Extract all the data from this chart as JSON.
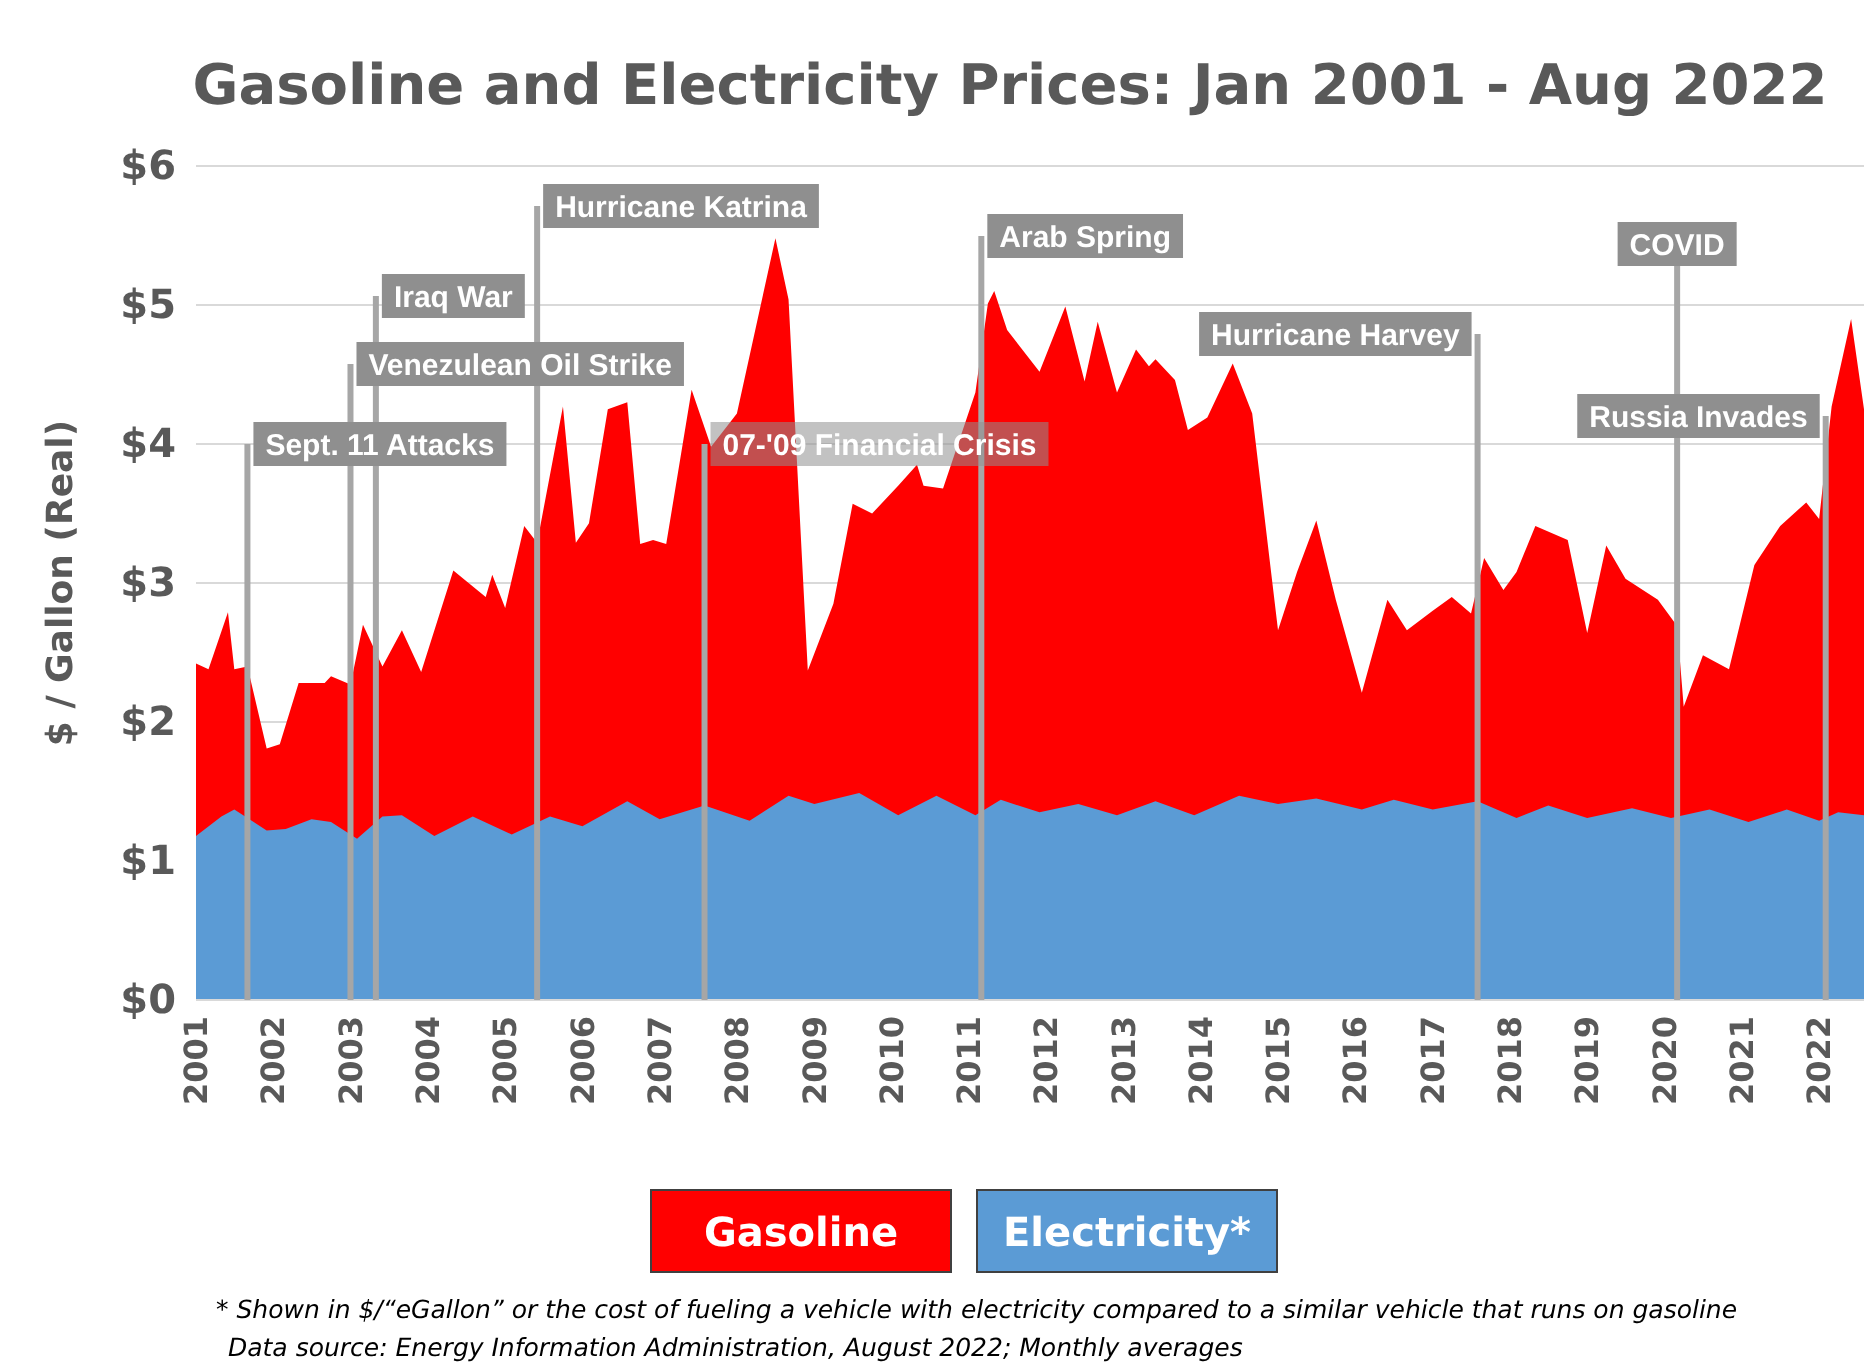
{
  "chart_data": {
    "type": "area",
    "title": "Gasoline and Electricity Prices: Jan 2001 - Aug 2022",
    "ylabel": "$ / Gallon (Real)",
    "xlim": [
      "2001-01",
      "2022-08"
    ],
    "xticks": [
      {
        "value": "2001-01",
        "label": "2001"
      },
      {
        "value": "2002-01",
        "label": "2002"
      },
      {
        "value": "2003-01",
        "label": "2003"
      },
      {
        "value": "2004-01",
        "label": "2004"
      },
      {
        "value": "2005-01",
        "label": "2005"
      },
      {
        "value": "2006-01",
        "label": "2006"
      },
      {
        "value": "2007-01",
        "label": "2007"
      },
      {
        "value": "2008-01",
        "label": "2008"
      },
      {
        "value": "2009-01",
        "label": "2009"
      },
      {
        "value": "2010-01",
        "label": "2010"
      },
      {
        "value": "2011-01",
        "label": "2011"
      },
      {
        "value": "2012-01",
        "label": "2012"
      },
      {
        "value": "2013-01",
        "label": "2013"
      },
      {
        "value": "2014-01",
        "label": "2014"
      },
      {
        "value": "2015-01",
        "label": "2015"
      },
      {
        "value": "2016-01",
        "label": "2016"
      },
      {
        "value": "2017-01",
        "label": "2017"
      },
      {
        "value": "2018-01",
        "label": "2018"
      },
      {
        "value": "2019-01",
        "label": "2019"
      },
      {
        "value": "2020-01",
        "label": "2020"
      },
      {
        "value": "2021-01",
        "label": "2021"
      },
      {
        "value": "2022-01",
        "label": "2022"
      }
    ],
    "ylim": [
      0,
      6
    ],
    "yticks": [
      {
        "value": 0,
        "label": "$0"
      },
      {
        "value": 1,
        "label": "$1"
      },
      {
        "value": 2,
        "label": "$2"
      },
      {
        "value": 3,
        "label": "$3"
      },
      {
        "value": 4,
        "label": "$4"
      },
      {
        "value": 5,
        "label": "$5"
      },
      {
        "value": 6,
        "label": "$6"
      }
    ],
    "grid": "y",
    "legend": "bottom",
    "series": [
      {
        "name": "Gasoline",
        "color": "#ff0000",
        "x": [
          "2001-01",
          "2001-02",
          "2001-03",
          "2001-06",
          "2001-07",
          "2001-09",
          "2001-12",
          "2002-02",
          "2002-05",
          "2002-09",
          "2002-10",
          "2003-01",
          "2003-03",
          "2003-06",
          "2003-09",
          "2003-12",
          "2004-05",
          "2004-10",
          "2004-11",
          "2005-01",
          "2005-04",
          "2005-06",
          "2005-10",
          "2005-12",
          "2006-02",
          "2006-05",
          "2006-08",
          "2006-10",
          "2006-12",
          "2007-02",
          "2007-06",
          "2007-09",
          "2008-01",
          "2008-07",
          "2008-09",
          "2008-12",
          "2009-04",
          "2009-07",
          "2009-10",
          "2010-02",
          "2010-05",
          "2010-06",
          "2010-09",
          "2011-02",
          "2011-04",
          "2011-05",
          "2011-07",
          "2011-12",
          "2012-04",
          "2012-07",
          "2012-09",
          "2012-12",
          "2013-03",
          "2013-05",
          "2013-06",
          "2013-09",
          "2013-11",
          "2014-02",
          "2014-06",
          "2014-09",
          "2015-01",
          "2015-04",
          "2015-07",
          "2015-10",
          "2016-02",
          "2016-06",
          "2016-09",
          "2016-11",
          "2017-01",
          "2017-04",
          "2017-07",
          "2017-09",
          "2017-12",
          "2018-02",
          "2018-05",
          "2018-10",
          "2019-01",
          "2019-04",
          "2019-07",
          "2019-12",
          "2020-03",
          "2020-04",
          "2020-07",
          "2020-11",
          "2021-03",
          "2021-07",
          "2021-11",
          "2022-01",
          "2022-03",
          "2022-06",
          "2022-08"
        ],
        "values": [
          2.42,
          2.4,
          2.38,
          2.79,
          2.38,
          2.4,
          1.81,
          1.84,
          2.28,
          2.28,
          2.33,
          2.27,
          2.7,
          2.4,
          2.66,
          2.36,
          3.09,
          2.9,
          3.06,
          2.82,
          3.41,
          3.29,
          4.27,
          3.29,
          3.43,
          4.25,
          4.3,
          3.28,
          3.31,
          3.28,
          4.39,
          3.98,
          4.22,
          5.48,
          5.04,
          2.37,
          2.85,
          3.57,
          3.5,
          3.7,
          3.85,
          3.7,
          3.68,
          4.37,
          5.01,
          5.1,
          4.82,
          4.52,
          4.99,
          4.45,
          4.88,
          4.37,
          4.68,
          4.56,
          4.61,
          4.46,
          4.1,
          4.19,
          4.58,
          4.22,
          2.66,
          3.08,
          3.45,
          2.88,
          2.21,
          2.88,
          2.66,
          2.73,
          2.8,
          2.9,
          2.78,
          3.18,
          2.95,
          3.08,
          3.41,
          3.31,
          2.64,
          3.27,
          3.03,
          2.88,
          2.69,
          2.11,
          2.48,
          2.38,
          3.13,
          3.41,
          3.58,
          3.46,
          4.27,
          4.9,
          4.25
        ]
      },
      {
        "name": "Electricity*",
        "color": "#5b9bd5",
        "x": [
          "2001-01",
          "2001-05",
          "2001-07",
          "2001-12",
          "2002-03",
          "2002-07",
          "2002-10",
          "2003-02",
          "2003-06",
          "2003-09",
          "2004-02",
          "2004-08",
          "2005-02",
          "2005-08",
          "2006-01",
          "2006-08",
          "2007-01",
          "2007-08",
          "2008-03",
          "2008-09",
          "2009-01",
          "2009-08",
          "2010-02",
          "2010-08",
          "2011-02",
          "2011-06",
          "2011-12",
          "2012-06",
          "2012-12",
          "2013-06",
          "2013-12",
          "2014-07",
          "2015-01",
          "2015-07",
          "2016-02",
          "2016-07",
          "2017-01",
          "2017-08",
          "2018-02",
          "2018-07",
          "2019-01",
          "2019-08",
          "2020-02",
          "2020-08",
          "2021-02",
          "2021-08",
          "2022-01",
          "2022-04",
          "2022-08"
        ],
        "values": [
          1.18,
          1.32,
          1.37,
          1.22,
          1.23,
          1.3,
          1.28,
          1.16,
          1.32,
          1.33,
          1.18,
          1.32,
          1.19,
          1.32,
          1.25,
          1.43,
          1.3,
          1.4,
          1.29,
          1.47,
          1.41,
          1.49,
          1.33,
          1.47,
          1.33,
          1.44,
          1.35,
          1.41,
          1.33,
          1.43,
          1.33,
          1.47,
          1.41,
          1.45,
          1.37,
          1.44,
          1.37,
          1.43,
          1.31,
          1.4,
          1.31,
          1.38,
          1.31,
          1.37,
          1.28,
          1.37,
          1.29,
          1.35,
          1.33
        ]
      }
    ],
    "ref_lines": [
      {
        "axis": "x",
        "value": "2001-09",
        "label": "Sept. 11 Attacks"
      },
      {
        "axis": "x",
        "value": "2003-01",
        "label": "Venezulean Oil Strike"
      },
      {
        "axis": "x",
        "value": "2003-05",
        "label": "Iraq War"
      },
      {
        "axis": "x",
        "value": "2005-06",
        "label": "Hurricane Katrina"
      },
      {
        "axis": "x",
        "value": "2007-08",
        "label": "07-'09 Financial Crisis"
      },
      {
        "axis": "x",
        "value": "2011-03",
        "label": "Arab Spring"
      },
      {
        "axis": "x",
        "value": "2017-08",
        "label": "Hurricane Harvey"
      },
      {
        "axis": "x",
        "value": "2020-03",
        "label": "COVID"
      },
      {
        "axis": "x",
        "value": "2022-02",
        "label": "Russia Invades"
      }
    ],
    "annotations": [
      "* Shown in $/“eGallon” or the cost of fueling a vehicle with electricity compared to a similar vehicle that runs on gasoline",
      "Data source: Energy Information Administration, August 2022; Monthly averages"
    ]
  }
}
